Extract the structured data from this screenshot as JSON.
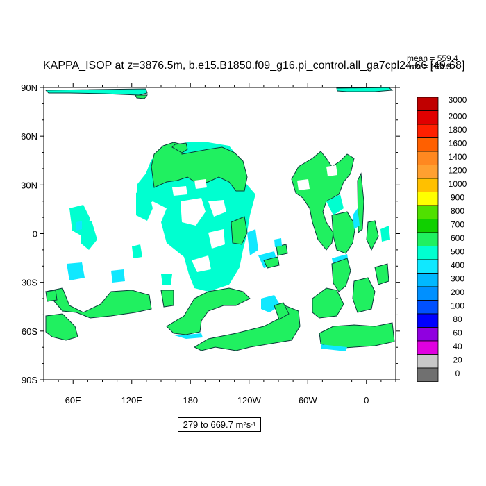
{
  "title": "KAPPA_ISOP at z=3876.5m, b.e15.B1850.f09_g16.pi_control.all_ga7cpl24.66 [49-68]",
  "stats": {
    "mean": "mean = 559.4",
    "rms": "rms = 169.3"
  },
  "range_label": {
    "text": "279 to 669.7 m",
    "sup1": "2",
    "mid": " s",
    "sup2": "-1"
  },
  "chart_data": {
    "type": "heatmap",
    "title": "KAPPA_ISOP at z=3876.5m, b.e15.B1850.f09_g16.pi_control.all_ga7cpl24.66 [49-68]",
    "xlabel": "",
    "ylabel": "",
    "x_ticks": [
      "60E",
      "120E",
      "180",
      "120W",
      "60W",
      "0"
    ],
    "y_ticks": [
      "90N",
      "60N",
      "30N",
      "0",
      "30S",
      "60S",
      "90S"
    ],
    "colorbar": {
      "labels": [
        "3000",
        "2000",
        "1800",
        "1600",
        "1400",
        "1200",
        "1000",
        "900",
        "800",
        "700",
        "600",
        "500",
        "400",
        "300",
        "200",
        "100",
        "80",
        "60",
        "40",
        "20",
        "0"
      ],
      "colors": [
        "#c00000",
        "#e00000",
        "#ff2000",
        "#ff6000",
        "#ff8820",
        "#ffa030",
        "#ffc000",
        "#ffff00",
        "#50e000",
        "#10d000",
        "#20f060",
        "#00ffd0",
        "#10e8ff",
        "#00b8ff",
        "#0090ff",
        "#0050ff",
        "#0000ff",
        "#9000e0",
        "#e000e0",
        "#c8c8c8",
        "#707070"
      ]
    },
    "stats": {
      "mean": 559.4,
      "rms": 169.3,
      "min": 279,
      "max": 669.7,
      "units": "m2 s-1"
    },
    "colors": {
      "green": "#20f060",
      "aqua": "#00ffd0",
      "cyan": "#10e8ff",
      "deep": "#00b8ff",
      "outline": "#0a3a3a"
    }
  }
}
